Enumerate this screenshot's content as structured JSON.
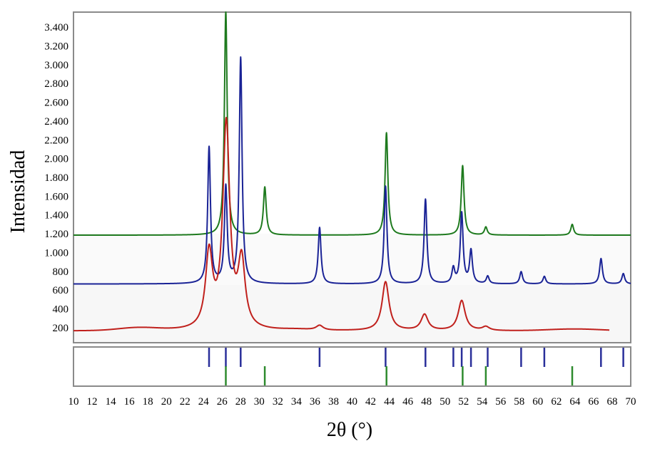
{
  "chart_data": {
    "type": "line",
    "title": "",
    "xlabel": "2θ (°)",
    "ylabel": "Intensidad",
    "xlim": [
      10,
      70
    ],
    "ylim": [
      40,
      3560
    ],
    "x_ticks": [
      10,
      12,
      14,
      16,
      18,
      20,
      22,
      24,
      26,
      28,
      30,
      32,
      34,
      36,
      38,
      40,
      42,
      44,
      46,
      48,
      50,
      52,
      54,
      56,
      58,
      60,
      62,
      64,
      66,
      68,
      70
    ],
    "y_ticks": [
      {
        "value": 200,
        "label": "200"
      },
      {
        "value": 400,
        "label": "400"
      },
      {
        "value": 600,
        "label": "600"
      },
      {
        "value": 800,
        "label": "800"
      },
      {
        "value": 1000,
        "label": "1.000"
      },
      {
        "value": 1200,
        "label": "1.200"
      },
      {
        "value": 1400,
        "label": "1.400"
      },
      {
        "value": 1600,
        "label": "1.600"
      },
      {
        "value": 1800,
        "label": "1.800"
      },
      {
        "value": 2000,
        "label": "2.000"
      },
      {
        "value": 2200,
        "label": "2.200"
      },
      {
        "value": 2400,
        "label": "2.400"
      },
      {
        "value": 2600,
        "label": "2.600"
      },
      {
        "value": 2800,
        "label": "2.800"
      },
      {
        "value": 3000,
        "label": "3.000"
      },
      {
        "value": 3200,
        "label": "3.200"
      },
      {
        "value": 3400,
        "label": "3.400"
      }
    ],
    "grid": false,
    "series": [
      {
        "color": "#1e7a1e",
        "baseline": 1185,
        "x_range": [
          10,
          70
        ],
        "peak_width": 0.18,
        "peaks": [
          [
            26.4,
            2380
          ],
          [
            30.6,
            510
          ],
          [
            43.7,
            1090
          ],
          [
            51.9,
            740
          ],
          [
            54.4,
            85
          ],
          [
            63.7,
            115
          ]
        ]
      },
      {
        "color": "#1a2396",
        "baseline": 665,
        "x_range": [
          10,
          70
        ],
        "peak_width": 0.18,
        "peaks": [
          [
            24.6,
            1450
          ],
          [
            26.4,
            1020
          ],
          [
            28.0,
            2400
          ],
          [
            36.5,
            600
          ],
          [
            43.6,
            1040
          ],
          [
            47.9,
            900
          ],
          [
            50.9,
            160
          ],
          [
            51.8,
            750
          ],
          [
            52.8,
            350
          ],
          [
            54.6,
            80
          ],
          [
            58.2,
            130
          ],
          [
            60.7,
            80
          ],
          [
            66.8,
            270
          ],
          [
            69.2,
            110
          ]
        ]
      },
      {
        "color": "#c0201c",
        "baseline": 165,
        "x_range": [
          10,
          67.7
        ],
        "peak_width": 0.45,
        "peaks": [
          [
            24.6,
            790
          ],
          [
            26.45,
            2180
          ],
          [
            28.1,
            700
          ],
          [
            36.5,
            50
          ],
          [
            43.6,
            520
          ],
          [
            47.8,
            170
          ],
          [
            51.8,
            320
          ],
          [
            54.4,
            40
          ]
        ],
        "humps": [
          [
            17.0,
            30,
            3.0
          ],
          [
            34.0,
            10,
            2.0
          ],
          [
            64.0,
            20,
            4.0
          ]
        ]
      }
    ],
    "reference_markers": [
      {
        "color": "#2a2f9a",
        "positions": [
          24.6,
          26.4,
          28.0,
          36.5,
          43.6,
          47.9,
          50.9,
          51.8,
          52.8,
          54.6,
          58.2,
          60.7,
          66.8,
          69.2
        ]
      },
      {
        "color": "#2e8b2e",
        "positions": [
          26.4,
          30.6,
          43.7,
          51.9,
          54.4,
          63.7
        ]
      }
    ]
  }
}
